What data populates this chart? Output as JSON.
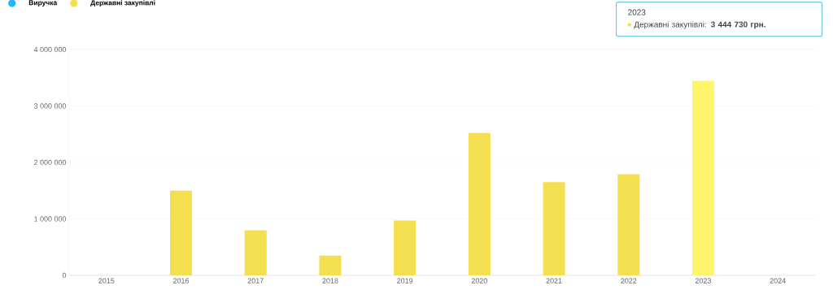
{
  "chart_data": {
    "type": "bar",
    "categories": [
      "2015",
      "2016",
      "2017",
      "2018",
      "2019",
      "2020",
      "2021",
      "2022",
      "2023",
      "2024"
    ],
    "series": [
      {
        "name": "Виручка",
        "color": "#29b6f6",
        "values": [
          null,
          null,
          null,
          null,
          null,
          null,
          null,
          null,
          null,
          null
        ]
      },
      {
        "name": "Державні закупівлі",
        "color": "#f4df50",
        "colors": [
          "#f4df50",
          "#f4df50",
          "#f4df50",
          "#f4df50",
          "#f4df50",
          "#f4df50",
          "#f4df50",
          "#f4df50",
          "#fff56a",
          "#f4df50"
        ],
        "values": [
          null,
          1500000,
          800000,
          350000,
          970000,
          2520000,
          1650000,
          1790000,
          3444730,
          null
        ]
      }
    ],
    "ylim": [
      0,
      4000000
    ],
    "yticks": [
      0,
      {
        "value": 1000000,
        "label": "1 000 000"
      },
      {
        "value": 2000000,
        "label": "2 000 000"
      },
      {
        "value": 3000000,
        "label": "3 000 000"
      },
      {
        "value": 4000000,
        "label": "4 000 000"
      }
    ],
    "grid": "y",
    "legend": "top left",
    "annotations": [
      "2023",
      "Державні закупівлі: **3 444 730 грн.**"
    ]
  }
}
